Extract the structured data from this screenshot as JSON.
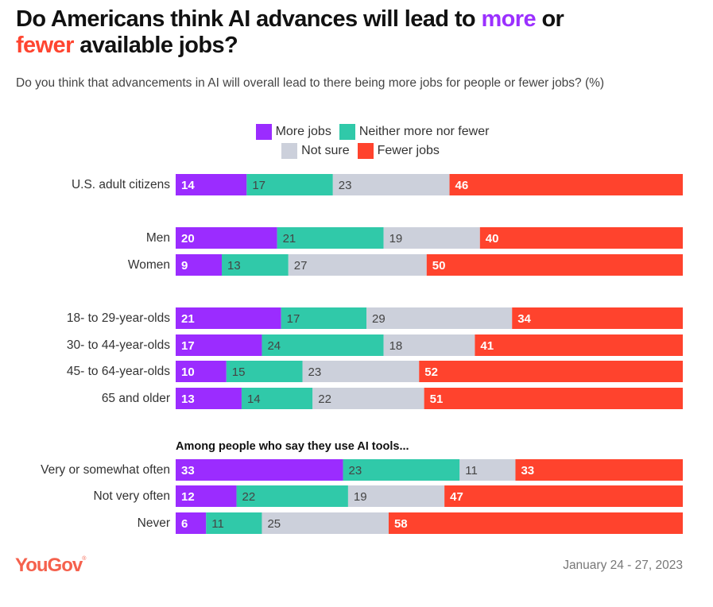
{
  "header": {
    "title_part1": "Do Americans think AI advances will lead to ",
    "title_more": "more",
    "title_part2": " or ",
    "title_fewer": "fewer",
    "title_part3": " available jobs?",
    "subtitle": "Do you think that advancements in AI will overall lead to there being more jobs for people or fewer jobs? (%)"
  },
  "footer": {
    "logo": "YouGov",
    "date": "January 24 - 27, 2023"
  },
  "colors": {
    "more": "#9b2cff",
    "neither": "#30c9a9",
    "not_sure": "#ccd0db",
    "fewer": "#ff432d"
  },
  "chart_data": {
    "type": "bar",
    "orientation": "horizontal",
    "stacked": true,
    "title": "Do Americans think AI advances will lead to more or fewer available jobs?",
    "subtitle": "Do you think that advancements in AI will overall lead to there being more jobs for people or fewer jobs? (%)",
    "xlim": [
      0,
      100
    ],
    "legend_position": "top-center",
    "series_names": [
      "More jobs",
      "Neither more nor fewer",
      "Not sure",
      "Fewer jobs"
    ],
    "series_keys": [
      "more",
      "neither",
      "not_sure",
      "fewer"
    ],
    "section_headers": [
      {
        "before_row": 7,
        "text": "Among people who say they use AI tools..."
      }
    ],
    "rows": [
      {
        "label": "U.S. adult citizens",
        "group": 0,
        "values": [
          14,
          17,
          23,
          46
        ]
      },
      {
        "label": "Men",
        "group": 1,
        "values": [
          20,
          21,
          19,
          40
        ]
      },
      {
        "label": "Women",
        "group": 1,
        "values": [
          9,
          13,
          27,
          50
        ]
      },
      {
        "label": "18- to 29-year-olds",
        "group": 2,
        "values": [
          21,
          17,
          29,
          34
        ]
      },
      {
        "label": "30- to 44-year-olds",
        "group": 2,
        "values": [
          17,
          24,
          18,
          41
        ]
      },
      {
        "label": "45- to 64-year-olds",
        "group": 2,
        "values": [
          10,
          15,
          23,
          52
        ]
      },
      {
        "label": "65 and older",
        "group": 2,
        "values": [
          13,
          14,
          22,
          51
        ]
      },
      {
        "label": "Very or somewhat often",
        "group": 3,
        "values": [
          33,
          23,
          11,
          33
        ]
      },
      {
        "label": "Not very often",
        "group": 3,
        "values": [
          12,
          22,
          19,
          47
        ]
      },
      {
        "label": "Never",
        "group": 3,
        "values": [
          6,
          11,
          25,
          58
        ]
      }
    ]
  }
}
